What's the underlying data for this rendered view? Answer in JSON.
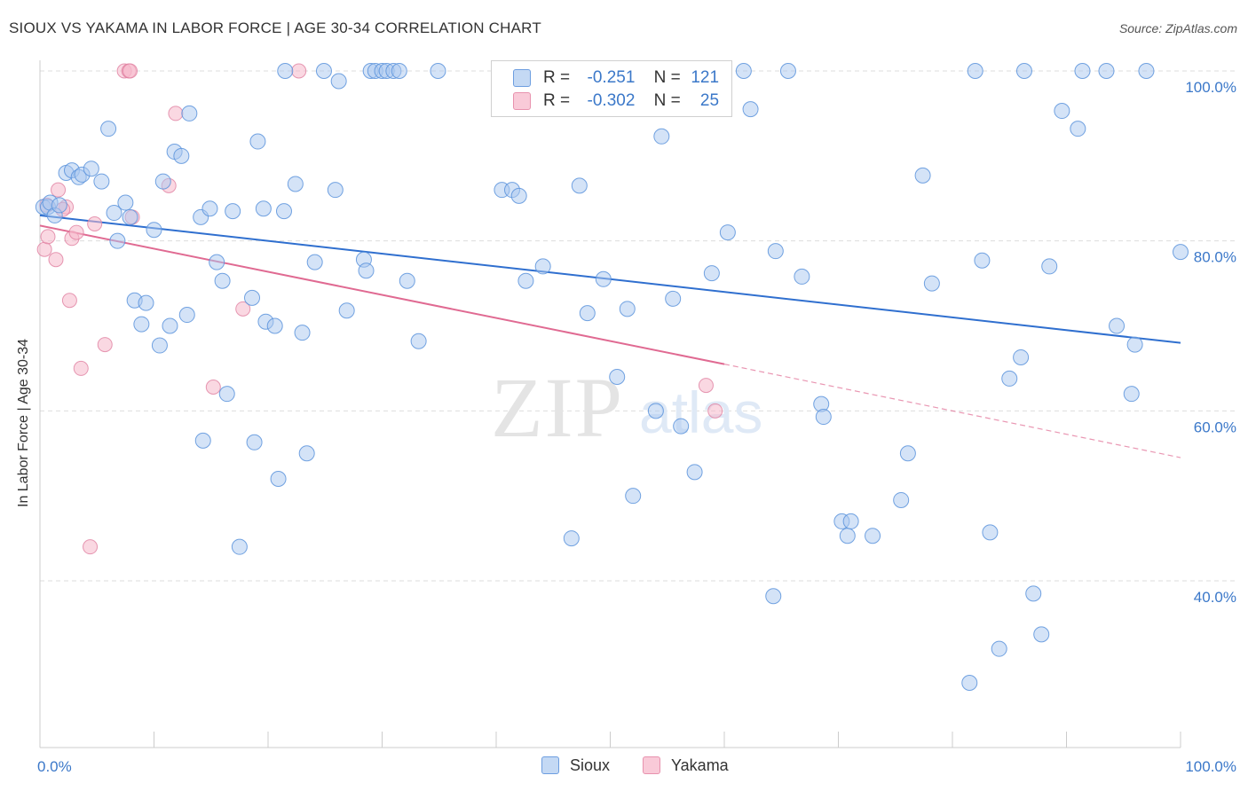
{
  "title": "SIOUX VS YAKAMA IN LABOR FORCE | AGE 30-34 CORRELATION CHART",
  "source": "Source: ZipAtlas.com",
  "watermark": {
    "zip": "ZIP",
    "atlas": "atlas"
  },
  "legend": {
    "r_label": "R =",
    "n_label": "N =",
    "sioux": {
      "r": "-0.251",
      "n": "121"
    },
    "yakama": {
      "r": "-0.302",
      "n": "25"
    }
  },
  "colors": {
    "sioux_fill": "#a9c8ef",
    "sioux_stroke": "#5b93dc",
    "sioux_line": "#2f6fcf",
    "yakama_fill": "#f6b8cb",
    "yakama_stroke": "#e07fa0",
    "yakama_line": "#e06a92",
    "tick_text": "#3b78c9",
    "grid": "#dddddd"
  },
  "chart_data": {
    "type": "scatter",
    "title": "SIOUX VS YAKAMA IN LABOR FORCE | AGE 30-34 CORRELATION CHART",
    "xlabel": "",
    "ylabel": "In Labor Force | Age 30-34",
    "xlim": [
      0,
      100
    ],
    "ylim": [
      20,
      104
    ],
    "x_tick_labels": [
      "0.0%",
      "100.0%"
    ],
    "y_ticks": [
      40,
      60,
      80,
      100
    ],
    "y_tick_labels": [
      "40.0%",
      "60.0%",
      "80.0%",
      "100.0%"
    ],
    "grid": true,
    "legend_position": "top-center",
    "series": [
      {
        "name": "Sioux",
        "r": -0.251,
        "n": 121,
        "trend": {
          "x": [
            0,
            100
          ],
          "y": [
            83.0,
            68.0
          ]
        },
        "points": [
          [
            0.3,
            84.0
          ],
          [
            0.7,
            84.0
          ],
          [
            0.9,
            84.5
          ],
          [
            1.3,
            83.0
          ],
          [
            1.7,
            84.2
          ],
          [
            2.3,
            88.0
          ],
          [
            2.8,
            88.3
          ],
          [
            3.4,
            87.5
          ],
          [
            3.7,
            87.8
          ],
          [
            4.5,
            88.5
          ],
          [
            5.4,
            87.0
          ],
          [
            6.0,
            93.2
          ],
          [
            6.5,
            83.3
          ],
          [
            6.8,
            80.0
          ],
          [
            7.5,
            84.5
          ],
          [
            7.9,
            82.8
          ],
          [
            8.3,
            73.0
          ],
          [
            8.9,
            70.2
          ],
          [
            9.3,
            72.7
          ],
          [
            10.0,
            81.3
          ],
          [
            10.5,
            67.7
          ],
          [
            10.8,
            87.0
          ],
          [
            11.4,
            70.0
          ],
          [
            11.8,
            90.5
          ],
          [
            12.4,
            90.0
          ],
          [
            12.9,
            71.3
          ],
          [
            13.1,
            95.0
          ],
          [
            14.1,
            82.8
          ],
          [
            14.3,
            56.5
          ],
          [
            14.9,
            83.8
          ],
          [
            15.5,
            77.5
          ],
          [
            16.0,
            75.3
          ],
          [
            16.4,
            62.0
          ],
          [
            16.9,
            83.5
          ],
          [
            17.5,
            44.0
          ],
          [
            18.6,
            73.3
          ],
          [
            18.8,
            56.3
          ],
          [
            19.1,
            91.7
          ],
          [
            19.6,
            83.8
          ],
          [
            19.8,
            70.5
          ],
          [
            20.6,
            70.0
          ],
          [
            20.9,
            52.0
          ],
          [
            21.4,
            83.5
          ],
          [
            21.5,
            100.0
          ],
          [
            22.4,
            86.7
          ],
          [
            23.0,
            69.2
          ],
          [
            23.4,
            55.0
          ],
          [
            24.1,
            77.5
          ],
          [
            24.9,
            100.0
          ],
          [
            25.9,
            86.0
          ],
          [
            26.2,
            98.8
          ],
          [
            26.9,
            71.8
          ],
          [
            28.4,
            77.8
          ],
          [
            28.6,
            76.5
          ],
          [
            29.0,
            100.0
          ],
          [
            29.4,
            100.0
          ],
          [
            30.0,
            100.0
          ],
          [
            30.4,
            100.0
          ],
          [
            31.0,
            100.0
          ],
          [
            31.5,
            100.0
          ],
          [
            32.2,
            75.3
          ],
          [
            33.2,
            68.2
          ],
          [
            34.9,
            100.0
          ],
          [
            40.5,
            86.0
          ],
          [
            41.4,
            86.0
          ],
          [
            42.0,
            85.3
          ],
          [
            42.6,
            75.3
          ],
          [
            44.1,
            77.0
          ],
          [
            46.6,
            45.0
          ],
          [
            47.3,
            86.5
          ],
          [
            48.0,
            71.5
          ],
          [
            49.0,
            100.0
          ],
          [
            49.4,
            75.5
          ],
          [
            50.6,
            64.0
          ],
          [
            51.5,
            72.0
          ],
          [
            52.0,
            50.0
          ],
          [
            54.0,
            60.0
          ],
          [
            54.5,
            92.3
          ],
          [
            55.2,
            100.0
          ],
          [
            55.5,
            73.2
          ],
          [
            56.2,
            58.2
          ],
          [
            57.4,
            52.8
          ],
          [
            58.0,
            100.0
          ],
          [
            58.9,
            76.2
          ],
          [
            60.3,
            81.0
          ],
          [
            61.7,
            100.0
          ],
          [
            62.3,
            95.5
          ],
          [
            64.3,
            38.2
          ],
          [
            64.5,
            78.8
          ],
          [
            65.6,
            100.0
          ],
          [
            66.8,
            75.8
          ],
          [
            68.5,
            60.8
          ],
          [
            68.7,
            59.3
          ],
          [
            70.3,
            47.0
          ],
          [
            70.8,
            45.3
          ],
          [
            71.1,
            47.0
          ],
          [
            73.0,
            45.3
          ],
          [
            75.5,
            49.5
          ],
          [
            76.1,
            55.0
          ],
          [
            77.4,
            87.7
          ],
          [
            78.2,
            75.0
          ],
          [
            81.5,
            28.0
          ],
          [
            82.0,
            100.0
          ],
          [
            82.6,
            77.7
          ],
          [
            83.3,
            45.7
          ],
          [
            84.1,
            32.0
          ],
          [
            85.0,
            63.8
          ],
          [
            86.0,
            66.3
          ],
          [
            86.3,
            100.0
          ],
          [
            87.1,
            38.5
          ],
          [
            87.8,
            33.7
          ],
          [
            88.5,
            77.0
          ],
          [
            89.6,
            95.3
          ],
          [
            91.0,
            93.2
          ],
          [
            91.4,
            100.0
          ],
          [
            93.5,
            100.0
          ],
          [
            94.4,
            70.0
          ],
          [
            95.7,
            62.0
          ],
          [
            96.0,
            67.8
          ],
          [
            97.0,
            100.0
          ],
          [
            100.0,
            78.7
          ]
        ]
      },
      {
        "name": "Yakama",
        "r": -0.302,
        "n": 25,
        "trend": {
          "x": [
            0,
            60
          ],
          "y": [
            81.8,
            65.5
          ]
        },
        "trend_dashed": {
          "x": [
            60,
            100
          ],
          "y": [
            65.5,
            54.5
          ]
        },
        "points": [
          [
            0.4,
            79.0
          ],
          [
            0.7,
            80.5
          ],
          [
            1.4,
            77.8
          ],
          [
            1.6,
            86.0
          ],
          [
            2.3,
            84.0
          ],
          [
            2.6,
            73.0
          ],
          [
            2.8,
            80.3
          ],
          [
            3.2,
            81.0
          ],
          [
            3.6,
            65.0
          ],
          [
            4.4,
            44.0
          ],
          [
            4.8,
            82.0
          ],
          [
            5.7,
            67.8
          ],
          [
            7.4,
            100.0
          ],
          [
            7.8,
            100.0
          ],
          [
            7.9,
            100.0
          ],
          [
            8.1,
            82.8
          ],
          [
            11.3,
            86.5
          ],
          [
            11.9,
            95.0
          ],
          [
            15.2,
            62.8
          ],
          [
            17.8,
            72.0
          ],
          [
            22.7,
            100.0
          ],
          [
            58.4,
            63.0
          ],
          [
            59.2,
            60.0
          ],
          [
            0.6,
            84.2
          ],
          [
            2.0,
            83.7
          ]
        ]
      }
    ]
  },
  "bottom_legend": {
    "sioux": "Sioux",
    "yakama": "Yakama"
  }
}
